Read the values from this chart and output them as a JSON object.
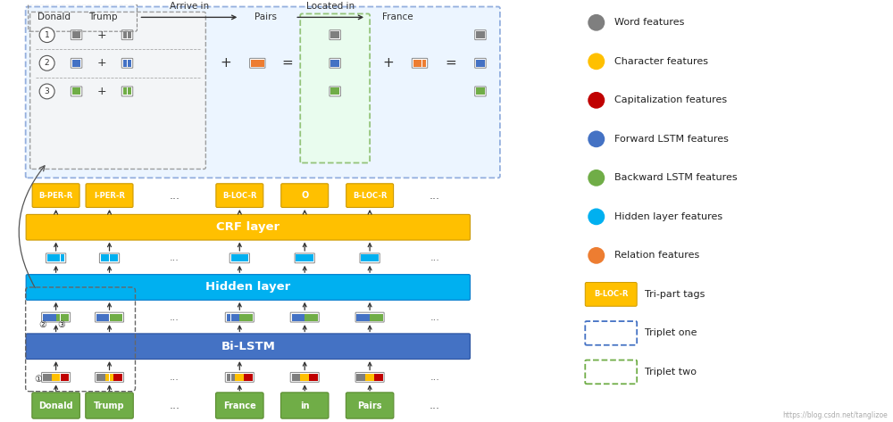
{
  "bg_color": "#ffffff",
  "tok_labels": [
    "Donald",
    "Trump",
    "...",
    "France",
    "in",
    "Pairs",
    "..."
  ],
  "tag_labels": [
    "B-PER-R",
    "I-PER-R",
    "...",
    "B-LOC-R",
    "O",
    "B-LOC-R",
    "..."
  ],
  "legend_items": [
    {
      "color": "#7f7f7f",
      "label": "Word features"
    },
    {
      "color": "#ffc000",
      "label": "Character features"
    },
    {
      "color": "#c00000",
      "label": "Capitalization features"
    },
    {
      "color": "#4472c4",
      "label": "Forward LSTM features"
    },
    {
      "color": "#70ad47",
      "label": "Backward LSTM features"
    },
    {
      "color": "#00b0f0",
      "label": "Hidden layer features"
    },
    {
      "color": "#ed7d31",
      "label": "Relation features"
    }
  ],
  "colors": {
    "bilstm": "#4472c4",
    "hidden": "#00b0f0",
    "crf": "#ffc000",
    "tag_bg": "#ffc000",
    "input_bg": "#70ad47",
    "triplet1_border": "#4472c4",
    "triplet2_border": "#70ad47",
    "arrow": "#333333"
  }
}
